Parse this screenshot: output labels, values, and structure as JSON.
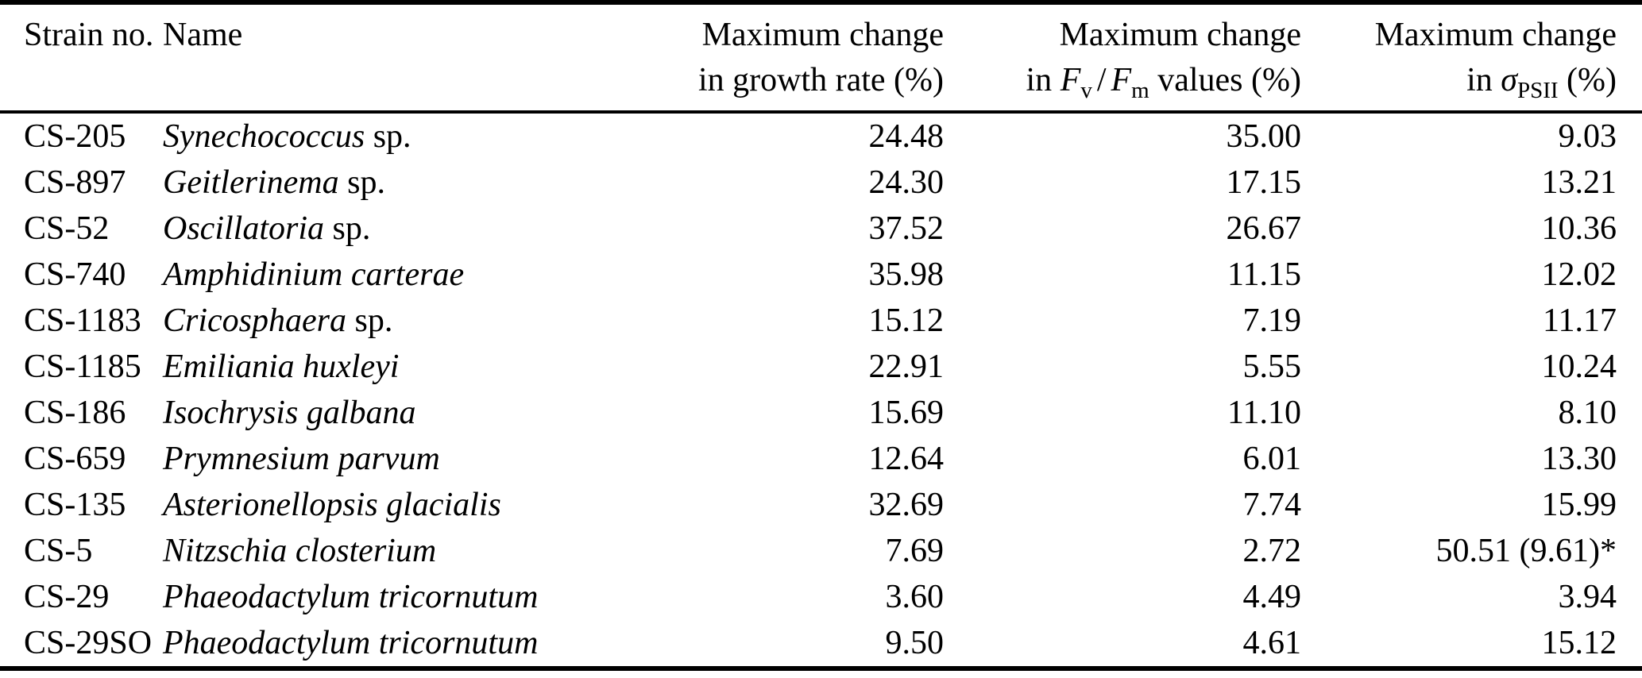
{
  "colors": {
    "background": "#ffffff",
    "text": "#000000",
    "rule": "#000000"
  },
  "table": {
    "header": {
      "strain_no": "Strain no.",
      "name": "Name",
      "growth": {
        "line1": "Maximum change",
        "line2": "in growth rate (%)"
      },
      "fvfm": {
        "line1": "Maximum change",
        "line2_pre": "in ",
        "f1": "F",
        "sub_v": "v",
        "slash": "/",
        "f2": "F",
        "sub_m": "m",
        "line2_post": " values (%)"
      },
      "sigma": {
        "line1": "Maximum change",
        "line2_pre": "in ",
        "sigma": "σ",
        "sub": "PSII",
        "line2_post": " (%)"
      }
    },
    "rows": [
      {
        "strain": "CS-205",
        "name_italic": "Synechococcus",
        "name_roman": " sp.",
        "growth": "24.48",
        "fvfm": "35.00",
        "sigma_psii": "9.03"
      },
      {
        "strain": "CS-897",
        "name_italic": "Geitlerinema",
        "name_roman": " sp.",
        "growth": "24.30",
        "fvfm": "17.15",
        "sigma_psii": "13.21"
      },
      {
        "strain": "CS-52",
        "name_italic": "Oscillatoria",
        "name_roman": " sp.",
        "growth": "37.52",
        "fvfm": "26.67",
        "sigma_psii": "10.36"
      },
      {
        "strain": "CS-740",
        "name_italic": "Amphidinium carterae",
        "name_roman": "",
        "growth": "35.98",
        "fvfm": "11.15",
        "sigma_psii": "12.02"
      },
      {
        "strain": "CS-1183",
        "name_italic": "Cricosphaera",
        "name_roman": " sp.",
        "growth": "15.12",
        "fvfm": "7.19",
        "sigma_psii": "11.17"
      },
      {
        "strain": "CS-1185",
        "name_italic": "Emiliania huxleyi",
        "name_roman": "",
        "growth": "22.91",
        "fvfm": "5.55",
        "sigma_psii": "10.24"
      },
      {
        "strain": "CS-186",
        "name_italic": "Isochrysis galbana",
        "name_roman": "",
        "growth": "15.69",
        "fvfm": "11.10",
        "sigma_psii": "8.10"
      },
      {
        "strain": "CS-659",
        "name_italic": "Prymnesium parvum",
        "name_roman": "",
        "growth": "12.64",
        "fvfm": "6.01",
        "sigma_psii": "13.30"
      },
      {
        "strain": "CS-135",
        "name_italic": "Asterionellopsis glacialis",
        "name_roman": "",
        "growth": "32.69",
        "fvfm": "7.74",
        "sigma_psii": "15.99"
      },
      {
        "strain": "CS-5",
        "name_italic": "Nitzschia closterium",
        "name_roman": "",
        "growth": "7.69",
        "fvfm": "2.72",
        "sigma_psii": "50.51 (9.61)*"
      },
      {
        "strain": "CS-29",
        "name_italic": "Phaeodactylum tricornutum",
        "name_roman": "",
        "growth": "3.60",
        "fvfm": "4.49",
        "sigma_psii": "3.94"
      },
      {
        "strain": "CS-29SO",
        "name_italic": "Phaeodactylum tricornutum",
        "name_roman": "",
        "growth": "9.50",
        "fvfm": "4.61",
        "sigma_psii": "15.12"
      }
    ]
  }
}
